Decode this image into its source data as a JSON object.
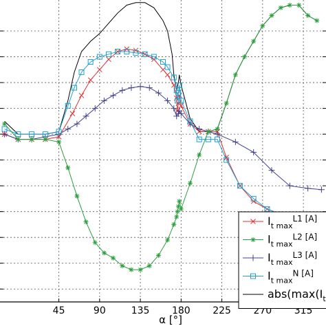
{
  "chart_data": {
    "type": "line",
    "xlabel": "α [°]",
    "ylabel": "",
    "title": "",
    "xlim": [
      -20,
      340
    ],
    "ylim": [
      -0.5,
      11.2
    ],
    "xticks": [
      45,
      90,
      135,
      180,
      225,
      270,
      315
    ],
    "xtick_labels": [
      "45",
      "90",
      "135",
      "180",
      "225",
      "270",
      "315"
    ],
    "yticks": [
      0,
      1,
      2,
      3,
      4,
      5,
      6,
      7,
      8,
      9,
      10
    ],
    "grid": true,
    "legend_position": "bottom-right",
    "legend_entries": [
      {
        "main": "I",
        "sub": "t max",
        "sup": "L1",
        "unit": " [A]"
      },
      {
        "main": "I",
        "sub": "t max",
        "sup": "L2",
        "unit": " [A]"
      },
      {
        "main": "I",
        "sub": "t max",
        "sup": "L3",
        "unit": " [A]"
      },
      {
        "main": "I",
        "sub": "t max",
        "sup": "N",
        "unit": " [A]"
      },
      {
        "main": "abs(max(I",
        "sub": "t m",
        "sup": "",
        "unit": ""
      }
    ],
    "series": [
      {
        "color": "#e03030",
        "marker": "x",
        "points": [
          [
            -15,
            6.0
          ],
          [
            0,
            5.8
          ],
          [
            15,
            5.8
          ],
          [
            30,
            5.8
          ],
          [
            45,
            5.9
          ],
          [
            60,
            6.8
          ],
          [
            70,
            7.5
          ],
          [
            80,
            8.1
          ],
          [
            90,
            8.5
          ],
          [
            100,
            8.9
          ],
          [
            110,
            9.2
          ],
          [
            120,
            9.3
          ],
          [
            130,
            9.25
          ],
          [
            140,
            9.1
          ],
          [
            150,
            8.9
          ],
          [
            160,
            8.5
          ],
          [
            165,
            8.3
          ],
          [
            172,
            7.9
          ],
          [
            175,
            7.4
          ],
          [
            176,
            6.9
          ],
          [
            177,
            7.2
          ],
          [
            178,
            7.5
          ],
          [
            180,
            7.1
          ],
          [
            190,
            6.4
          ],
          [
            200,
            6.1
          ],
          [
            210,
            6.1
          ],
          [
            220,
            6.1
          ],
          [
            230,
            5.1
          ],
          [
            245,
            4.0
          ],
          [
            260,
            3.4
          ],
          [
            275,
            3.1
          ],
          [
            290,
            2.9
          ]
        ]
      },
      {
        "color": "#2e9e40",
        "marker": "star",
        "points": [
          [
            -15,
            6.4
          ],
          [
            0,
            5.8
          ],
          [
            15,
            5.8
          ],
          [
            30,
            5.8
          ],
          [
            45,
            5.7
          ],
          [
            55,
            4.7
          ],
          [
            65,
            3.6
          ],
          [
            75,
            2.6
          ],
          [
            85,
            1.8
          ],
          [
            95,
            1.4
          ],
          [
            105,
            1.2
          ],
          [
            115,
            0.9
          ],
          [
            125,
            0.75
          ],
          [
            135,
            0.75
          ],
          [
            145,
            0.9
          ],
          [
            155,
            1.3
          ],
          [
            165,
            1.9
          ],
          [
            172,
            2.5
          ],
          [
            175,
            2.8
          ],
          [
            176,
            3.0
          ],
          [
            177,
            3.2
          ],
          [
            178,
            3.4
          ],
          [
            180,
            3.1
          ],
          [
            190,
            4.1
          ],
          [
            200,
            5.2
          ],
          [
            210,
            6.1
          ],
          [
            220,
            6.2
          ],
          [
            230,
            7.2
          ],
          [
            240,
            8.3
          ],
          [
            250,
            9.0
          ],
          [
            260,
            9.6
          ],
          [
            270,
            10.2
          ],
          [
            280,
            10.6
          ],
          [
            290,
            10.9
          ],
          [
            300,
            11.0
          ],
          [
            310,
            11.0
          ],
          [
            320,
            10.6
          ],
          [
            330,
            10.4
          ]
        ]
      },
      {
        "color": "#40408a",
        "marker": "plus",
        "points": [
          [
            -15,
            6.0
          ],
          [
            0,
            5.8
          ],
          [
            15,
            5.8
          ],
          [
            30,
            5.9
          ],
          [
            45,
            6.0
          ],
          [
            55,
            6.2
          ],
          [
            65,
            6.4
          ],
          [
            75,
            6.7
          ],
          [
            85,
            7.0
          ],
          [
            95,
            7.3
          ],
          [
            105,
            7.5
          ],
          [
            115,
            7.7
          ],
          [
            125,
            7.8
          ],
          [
            135,
            7.85
          ],
          [
            145,
            7.8
          ],
          [
            155,
            7.6
          ],
          [
            165,
            7.3
          ],
          [
            172,
            7.0
          ],
          [
            175,
            6.7
          ],
          [
            177,
            6.8
          ],
          [
            178,
            6.9
          ],
          [
            180,
            6.8
          ],
          [
            190,
            6.4
          ],
          [
            200,
            6.2
          ],
          [
            210,
            6.1
          ],
          [
            220,
            6.0
          ],
          [
            240,
            5.7
          ],
          [
            260,
            5.3
          ],
          [
            280,
            4.6
          ],
          [
            300,
            4.0
          ],
          [
            320,
            3.9
          ],
          [
            335,
            3.85
          ]
        ]
      },
      {
        "color": "#20a0d0",
        "marker": "square",
        "points": [
          [
            -15,
            6.2
          ],
          [
            0,
            6.0
          ],
          [
            15,
            6.0
          ],
          [
            30,
            6.0
          ],
          [
            45,
            6.1
          ],
          [
            55,
            7.1
          ],
          [
            62,
            7.8
          ],
          [
            70,
            8.4
          ],
          [
            80,
            8.8
          ],
          [
            90,
            9.0
          ],
          [
            100,
            9.1
          ],
          [
            110,
            9.2
          ],
          [
            120,
            9.2
          ],
          [
            130,
            9.15
          ],
          [
            140,
            9.1
          ],
          [
            150,
            9.0
          ],
          [
            160,
            8.8
          ],
          [
            165,
            8.6
          ],
          [
            172,
            8.2
          ],
          [
            175,
            7.7
          ],
          [
            176,
            7.3
          ],
          [
            177,
            7.6
          ],
          [
            178,
            7.9
          ],
          [
            180,
            7.3
          ],
          [
            190,
            6.5
          ],
          [
            200,
            5.8
          ],
          [
            210,
            5.8
          ],
          [
            220,
            5.8
          ],
          [
            230,
            5.0
          ],
          [
            245,
            4.0
          ],
          [
            260,
            3.5
          ],
          [
            275,
            3.1
          ],
          [
            290,
            2.9
          ]
        ]
      },
      {
        "color": "#000000",
        "marker": "none",
        "points": [
          [
            -15,
            6.5
          ],
          [
            0,
            6.0
          ],
          [
            15,
            6.0
          ],
          [
            30,
            6.0
          ],
          [
            45,
            6.1
          ],
          [
            55,
            7.3
          ],
          [
            62,
            8.4
          ],
          [
            70,
            9.2
          ],
          [
            80,
            9.6
          ],
          [
            90,
            9.9
          ],
          [
            100,
            10.3
          ],
          [
            110,
            10.7
          ],
          [
            120,
            11.0
          ],
          [
            130,
            11.1
          ],
          [
            140,
            11.1
          ],
          [
            150,
            10.9
          ],
          [
            160,
            10.4
          ],
          [
            165,
            10.0
          ],
          [
            170,
            9.1
          ],
          [
            172,
            8.3
          ],
          [
            175,
            7.7
          ],
          [
            177,
            8.0
          ],
          [
            178,
            8.3
          ],
          [
            180,
            7.9
          ],
          [
            190,
            6.6
          ],
          [
            200,
            6.1
          ],
          [
            210,
            6.1
          ],
          [
            220,
            6.2
          ],
          [
            230,
            7.2
          ],
          [
            240,
            8.3
          ],
          [
            250,
            9.0
          ],
          [
            260,
            9.6
          ],
          [
            270,
            10.2
          ],
          [
            280,
            10.6
          ],
          [
            290,
            10.9
          ],
          [
            300,
            11.0
          ],
          [
            310,
            11.0
          ],
          [
            320,
            10.6
          ],
          [
            330,
            10.4
          ]
        ]
      }
    ]
  }
}
